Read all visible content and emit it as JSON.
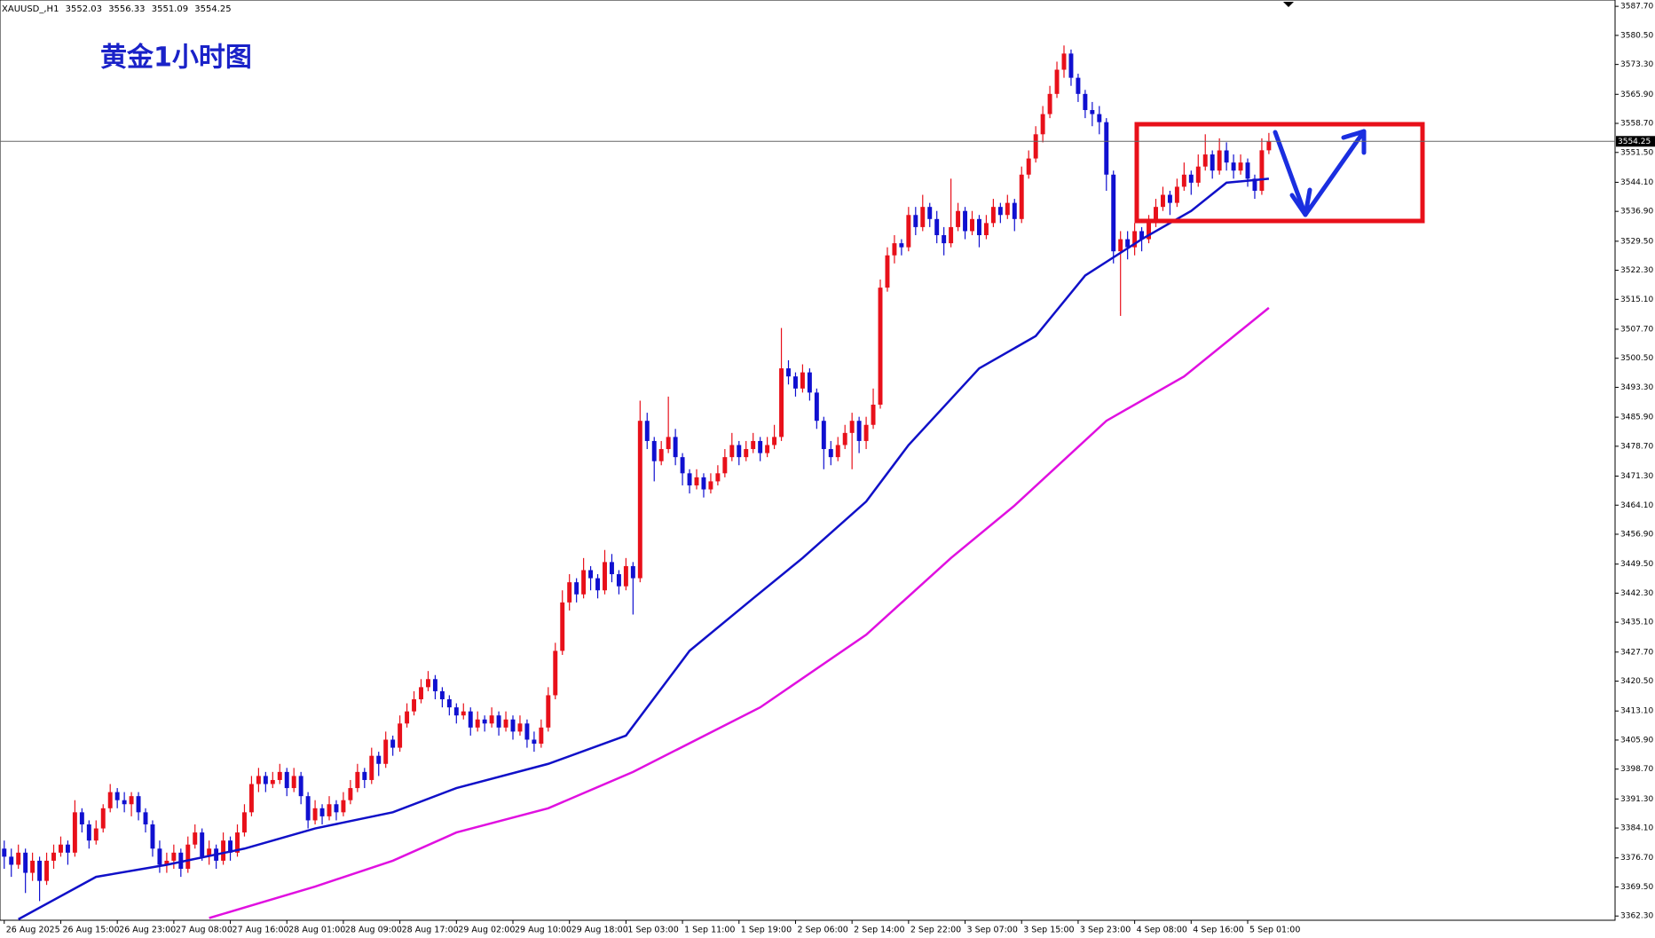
{
  "header": {
    "symbol": "XAUUSD_,H1"
  },
  "chart_data": {
    "type": "candlestick",
    "title": "黄金1小时图",
    "up_color": "#e8101a",
    "down_color": "#1010d0",
    "ohlc": [
      [
        3379,
        3381,
        3374,
        3377
      ],
      [
        3377,
        3379,
        3372,
        3375
      ],
      [
        3375,
        3380,
        3374,
        3378
      ],
      [
        3378,
        3379,
        3368,
        3373
      ],
      [
        3373,
        3378,
        3371,
        3376
      ],
      [
        3376,
        3377,
        3366,
        3371
      ],
      [
        3371,
        3378,
        3370,
        3376
      ],
      [
        3376,
        3380,
        3374,
        3378
      ],
      [
        3378,
        3382,
        3377,
        3380
      ],
      [
        3380,
        3381,
        3375,
        3378
      ],
      [
        3378,
        3391,
        3377,
        3388
      ],
      [
        3388,
        3389,
        3383,
        3385
      ],
      [
        3385,
        3386,
        3379,
        3381
      ],
      [
        3381,
        3386,
        3380,
        3384
      ],
      [
        3384,
        3390,
        3383,
        3389
      ],
      [
        3389,
        3395,
        3388,
        3393
      ],
      [
        3393,
        3394,
        3389,
        3391
      ],
      [
        3391,
        3393,
        3388,
        3390
      ],
      [
        3390,
        3393,
        3387,
        3392
      ],
      [
        3392,
        3393,
        3386,
        3388
      ],
      [
        3388,
        3389,
        3383,
        3385
      ],
      [
        3385,
        3386,
        3377,
        3379
      ],
      [
        3379,
        3381,
        3373,
        3375
      ],
      [
        3375,
        3378,
        3373,
        3376
      ],
      [
        3376,
        3380,
        3374,
        3378
      ],
      [
        3378,
        3379,
        3372,
        3374
      ],
      [
        3374,
        3382,
        3373,
        3380
      ],
      [
        3380,
        3385,
        3379,
        3383
      ],
      [
        3383,
        3384,
        3376,
        3377
      ],
      [
        3377,
        3381,
        3375,
        3379
      ],
      [
        3379,
        3380,
        3374,
        3376
      ],
      [
        3376,
        3383,
        3375,
        3381
      ],
      [
        3381,
        3382,
        3376,
        3378
      ],
      [
        3378,
        3385,
        3377,
        3383
      ],
      [
        3383,
        3390,
        3382,
        3388
      ],
      [
        3388,
        3397,
        3387,
        3395
      ],
      [
        3395,
        3399,
        3393,
        3397
      ],
      [
        3397,
        3398,
        3393,
        3395
      ],
      [
        3395,
        3398,
        3394,
        3396
      ],
      [
        3396,
        3400,
        3395,
        3398
      ],
      [
        3398,
        3399,
        3392,
        3394
      ],
      [
        3394,
        3399,
        3393,
        3397
      ],
      [
        3397,
        3398,
        3390,
        3392
      ],
      [
        3392,
        3393,
        3384,
        3386
      ],
      [
        3386,
        3391,
        3385,
        3389
      ],
      [
        3389,
        3390,
        3385,
        3387
      ],
      [
        3387,
        3392,
        3386,
        3390
      ],
      [
        3390,
        3391,
        3386,
        3388
      ],
      [
        3388,
        3393,
        3387,
        3391
      ],
      [
        3391,
        3396,
        3390,
        3394
      ],
      [
        3394,
        3400,
        3393,
        3398
      ],
      [
        3398,
        3399,
        3394,
        3396
      ],
      [
        3396,
        3404,
        3395,
        3402
      ],
      [
        3402,
        3403,
        3397,
        3400
      ],
      [
        3400,
        3408,
        3399,
        3406
      ],
      [
        3406,
        3407,
        3402,
        3404
      ],
      [
        3404,
        3412,
        3403,
        3410
      ],
      [
        3410,
        3415,
        3409,
        3413
      ],
      [
        3413,
        3418,
        3412,
        3416
      ],
      [
        3416,
        3421,
        3415,
        3419
      ],
      [
        3419,
        3423,
        3418,
        3421
      ],
      [
        3421,
        3422,
        3416,
        3418
      ],
      [
        3418,
        3419,
        3414,
        3416
      ],
      [
        3416,
        3417,
        3412,
        3414
      ],
      [
        3414,
        3415,
        3410,
        3412
      ],
      [
        3412,
        3415,
        3411,
        3413
      ],
      [
        3413,
        3414,
        3407,
        3409
      ],
      [
        3409,
        3413,
        3408,
        3411
      ],
      [
        3411,
        3412,
        3408,
        3410
      ],
      [
        3410,
        3414,
        3409,
        3412
      ],
      [
        3412,
        3413,
        3407,
        3409
      ],
      [
        3409,
        3413,
        3408,
        3411
      ],
      [
        3411,
        3412,
        3406,
        3408
      ],
      [
        3408,
        3412,
        3407,
        3410
      ],
      [
        3410,
        3411,
        3404,
        3406
      ],
      [
        3406,
        3408,
        3403,
        3405
      ],
      [
        3405,
        3411,
        3404,
        3409
      ],
      [
        3409,
        3419,
        3408,
        3417
      ],
      [
        3417,
        3430,
        3416,
        3428
      ],
      [
        3428,
        3443,
        3427,
        3440
      ],
      [
        3440,
        3447,
        3438,
        3445
      ],
      [
        3445,
        3446,
        3440,
        3442
      ],
      [
        3442,
        3451,
        3441,
        3448
      ],
      [
        3448,
        3449,
        3443,
        3446
      ],
      [
        3446,
        3447,
        3441,
        3443
      ],
      [
        3443,
        3453,
        3442,
        3450
      ],
      [
        3450,
        3452,
        3445,
        3447
      ],
      [
        3447,
        3448,
        3442,
        3444
      ],
      [
        3444,
        3451,
        3443,
        3449
      ],
      [
        3449,
        3450,
        3437,
        3446
      ],
      [
        3446,
        3490,
        3445,
        3485
      ],
      [
        3485,
        3487,
        3478,
        3480
      ],
      [
        3480,
        3481,
        3470,
        3475
      ],
      [
        3475,
        3480,
        3474,
        3478
      ],
      [
        3478,
        3491,
        3477,
        3481
      ],
      [
        3481,
        3483,
        3474,
        3476
      ],
      [
        3476,
        3477,
        3469,
        3472
      ],
      [
        3472,
        3473,
        3467,
        3469
      ],
      [
        3469,
        3473,
        3468,
        3471
      ],
      [
        3471,
        3472,
        3466,
        3468
      ],
      [
        3468,
        3472,
        3467,
        3470
      ],
      [
        3470,
        3474,
        3469,
        3472
      ],
      [
        3472,
        3478,
        3471,
        3476
      ],
      [
        3476,
        3482,
        3475,
        3479
      ],
      [
        3479,
        3480,
        3474,
        3476
      ],
      [
        3476,
        3480,
        3475,
        3478
      ],
      [
        3478,
        3482,
        3477,
        3480
      ],
      [
        3480,
        3481,
        3475,
        3477
      ],
      [
        3477,
        3481,
        3476,
        3479
      ],
      [
        3479,
        3484,
        3478,
        3481
      ],
      [
        3481,
        3508,
        3480,
        3498
      ],
      [
        3498,
        3500,
        3494,
        3496
      ],
      [
        3496,
        3497,
        3491,
        3493
      ],
      [
        3493,
        3499,
        3492,
        3497
      ],
      [
        3497,
        3498,
        3490,
        3492
      ],
      [
        3492,
        3493,
        3483,
        3485
      ],
      [
        3485,
        3486,
        3473,
        3478
      ],
      [
        3478,
        3480,
        3474,
        3476
      ],
      [
        3476,
        3481,
        3475,
        3479
      ],
      [
        3479,
        3484,
        3478,
        3482
      ],
      [
        3482,
        3487,
        3473,
        3485
      ],
      [
        3485,
        3486,
        3477,
        3480
      ],
      [
        3480,
        3486,
        3478,
        3484
      ],
      [
        3484,
        3493,
        3483,
        3489
      ],
      [
        3489,
        3520,
        3488,
        3518
      ],
      [
        3518,
        3528,
        3517,
        3526
      ],
      [
        3526,
        3531,
        3524,
        3529
      ],
      [
        3529,
        3530,
        3526,
        3528
      ],
      [
        3528,
        3538,
        3527,
        3536
      ],
      [
        3536,
        3538,
        3531,
        3533
      ],
      [
        3533,
        3541,
        3532,
        3538
      ],
      [
        3538,
        3539,
        3533,
        3535
      ],
      [
        3535,
        3537,
        3529,
        3531
      ],
      [
        3531,
        3533,
        3526,
        3529
      ],
      [
        3529,
        3545,
        3528,
        3533
      ],
      [
        3533,
        3539,
        3532,
        3537
      ],
      [
        3537,
        3538,
        3530,
        3532
      ],
      [
        3532,
        3537,
        3531,
        3535
      ],
      [
        3535,
        3536,
        3528,
        3531
      ],
      [
        3531,
        3536,
        3530,
        3534
      ],
      [
        3534,
        3540,
        3533,
        3538
      ],
      [
        3538,
        3539,
        3534,
        3536
      ],
      [
        3536,
        3541,
        3535,
        3539
      ],
      [
        3539,
        3540,
        3532,
        3535
      ],
      [
        3535,
        3548,
        3534,
        3546
      ],
      [
        3546,
        3552,
        3545,
        3550
      ],
      [
        3550,
        3558,
        3549,
        3556
      ],
      [
        3556,
        3563,
        3554,
        3561
      ],
      [
        3561,
        3568,
        3560,
        3566
      ],
      [
        3566,
        3574,
        3565,
        3572
      ],
      [
        3572,
        3578,
        3570,
        3576
      ],
      [
        3576,
        3577,
        3568,
        3570
      ],
      [
        3570,
        3571,
        3564,
        3566
      ],
      [
        3566,
        3567,
        3560,
        3562
      ],
      [
        3562,
        3564,
        3558,
        3561
      ],
      [
        3561,
        3563,
        3556,
        3559
      ],
      [
        3559,
        3560,
        3542,
        3546
      ],
      [
        3546,
        3547,
        3524,
        3527
      ],
      [
        3527,
        3532,
        3511,
        3530
      ],
      [
        3530,
        3532,
        3525,
        3528
      ],
      [
        3528,
        3534,
        3526,
        3532
      ],
      [
        3532,
        3533,
        3527,
        3530
      ],
      [
        3530,
        3536,
        3529,
        3534
      ],
      [
        3534,
        3540,
        3533,
        3538
      ],
      [
        3538,
        3543,
        3537,
        3541
      ],
      [
        3541,
        3542,
        3536,
        3539
      ],
      [
        3539,
        3545,
        3538,
        3543
      ],
      [
        3543,
        3549,
        3542,
        3546
      ],
      [
        3546,
        3547,
        3541,
        3544
      ],
      [
        3544,
        3551,
        3543,
        3548
      ],
      [
        3548,
        3556,
        3547,
        3551
      ],
      [
        3551,
        3552,
        3545,
        3547
      ],
      [
        3547,
        3555,
        3546,
        3552
      ],
      [
        3552,
        3554,
        3547,
        3549
      ],
      [
        3549,
        3551,
        3545,
        3547
      ],
      [
        3547,
        3551,
        3546,
        3549
      ],
      [
        3549,
        3550,
        3543,
        3545
      ],
      [
        3545,
        3546,
        3540,
        3542
      ],
      [
        3542,
        3555,
        3541,
        3552.03
      ],
      [
        3552.03,
        3556.33,
        3551.09,
        3554.25
      ]
    ],
    "lines": [
      {
        "color": "#1010c8",
        "x": [
          2,
          13,
          23,
          34,
          44,
          55,
          64,
          77,
          88,
          97,
          106,
          113,
          122,
          128,
          138,
          146,
          153,
          161,
          168,
          173,
          179
        ],
        "values": [
          3361.5,
          3372,
          3375,
          3379,
          3384,
          3388,
          3394,
          3400,
          3407,
          3428,
          3441,
          3451,
          3465,
          3479,
          3498,
          3506,
          3521,
          3530,
          3537,
          3544,
          3545
        ]
      },
      {
        "color": "#e010e0",
        "x": [
          29,
          44,
          55,
          64,
          77,
          89,
          107,
          122,
          134,
          143,
          156,
          167,
          179
        ],
        "values": [
          3361.8,
          3369.6,
          3376,
          3383,
          3389,
          3398,
          3414,
          3432,
          3451,
          3464,
          3485,
          3496,
          3513
        ]
      }
    ],
    "xlim": [
      -0.6,
      228
    ],
    "ylim": [
      3361.25,
      3589.27
    ],
    "yticks": [
      {
        "value": 3362.3,
        "label": "3362.30"
      },
      {
        "value": 3369.5,
        "label": "3369.50"
      },
      {
        "value": 3376.7,
        "label": "3376.70"
      },
      {
        "value": 3384.1,
        "label": "3384.10"
      },
      {
        "value": 3391.3,
        "label": "3391.30"
      },
      {
        "value": 3398.7,
        "label": "3398.70"
      },
      {
        "value": 3405.9,
        "label": "3405.90"
      },
      {
        "value": 3413.1,
        "label": "3413.10"
      },
      {
        "value": 3420.5,
        "label": "3420.50"
      },
      {
        "value": 3427.7,
        "label": "3427.70"
      },
      {
        "value": 3435.1,
        "label": "3435.10"
      },
      {
        "value": 3442.3,
        "label": "3442.30"
      },
      {
        "value": 3449.5,
        "label": "3449.50"
      },
      {
        "value": 3456.9,
        "label": "3456.90"
      },
      {
        "value": 3464.1,
        "label": "3464.10"
      },
      {
        "value": 3471.3,
        "label": "3471.30"
      },
      {
        "value": 3478.7,
        "label": "3478.70"
      },
      {
        "value": 3485.9,
        "label": "3485.90"
      },
      {
        "value": 3493.3,
        "label": "3493.30"
      },
      {
        "value": 3500.5,
        "label": "3500.50"
      },
      {
        "value": 3507.7,
        "label": "3507.70"
      },
      {
        "value": 3515.1,
        "label": "3515.10"
      },
      {
        "value": 3522.3,
        "label": "3522.30"
      },
      {
        "value": 3529.5,
        "label": "3529.50"
      },
      {
        "value": 3536.9,
        "label": "3536.90"
      },
      {
        "value": 3544.1,
        "label": "3544.10"
      },
      {
        "value": 3551.5,
        "label": "3551.50"
      },
      {
        "value": 3558.7,
        "label": "3558.70"
      },
      {
        "value": 3565.9,
        "label": "3565.90"
      },
      {
        "value": 3573.3,
        "label": "3573.30"
      },
      {
        "value": 3580.5,
        "label": "3580.50"
      },
      {
        "value": 3587.7,
        "label": "3587.70"
      }
    ],
    "xticks": [
      {
        "value": 0,
        "label": "26 Aug 2025"
      },
      {
        "value": 8,
        "label": "26 Aug 15:00"
      },
      {
        "value": 16,
        "label": "26 Aug 23:00"
      },
      {
        "value": 24,
        "label": "27 Aug 08:00"
      },
      {
        "value": 32,
        "label": "27 Aug 16:00"
      },
      {
        "value": 40,
        "label": "28 Aug 01:00"
      },
      {
        "value": 48,
        "label": "28 Aug 09:00"
      },
      {
        "value": 56,
        "label": "28 Aug 17:00"
      },
      {
        "value": 64,
        "label": "29 Aug 02:00"
      },
      {
        "value": 72,
        "label": "29 Aug 10:00"
      },
      {
        "value": 80,
        "label": "29 Aug 18:00"
      },
      {
        "value": 88,
        "label": "1 Sep 03:00"
      },
      {
        "value": 96,
        "label": "1 Sep 11:00"
      },
      {
        "value": 104,
        "label": "1 Sep 19:00"
      },
      {
        "value": 112,
        "label": "2 Sep 06:00"
      },
      {
        "value": 120,
        "label": "2 Sep 14:00"
      },
      {
        "value": 128,
        "label": "2 Sep 22:00"
      },
      {
        "value": 136,
        "label": "3 Sep 07:00"
      },
      {
        "value": 144,
        "label": "3 Sep 15:00"
      },
      {
        "value": 152,
        "label": "3 Sep 23:00"
      },
      {
        "value": 160,
        "label": "4 Sep 08:00"
      },
      {
        "value": 168,
        "label": "4 Sep 16:00"
      },
      {
        "value": 176,
        "label": "5 Sep 01:00"
      }
    ]
  }
}
